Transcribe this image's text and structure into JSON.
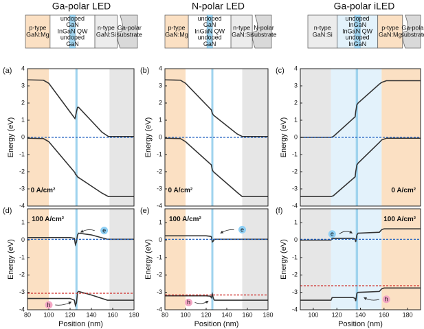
{
  "structures": [
    {
      "title": "Ga-polar LED",
      "layers": [
        {
          "lines": [
            "p-type",
            "GaN:Mg"
          ],
          "color": "#fbe0c3"
        },
        {
          "lines": [
            "undoped",
            "GaN",
            "InGaN QW",
            "undoped",
            "GaN"
          ],
          "color": "#ffffff"
        },
        {
          "lines": [
            "n-type",
            "GaN:Si"
          ],
          "color": "#ececec"
        },
        {
          "lines": [
            "Ga-polar",
            "substrate"
          ],
          "color": "#d9d9d9"
        }
      ]
    },
    {
      "title": "N-polar LED",
      "layers": [
        {
          "lines": [
            "p-type",
            "GaN:Mg"
          ],
          "color": "#fbe0c3"
        },
        {
          "lines": [
            "undoped",
            "GaN",
            "InGaN QW",
            "undoped",
            "GaN"
          ],
          "color": "#ffffff"
        },
        {
          "lines": [
            "n-type",
            "GaN:Si"
          ],
          "color": "#ececec"
        },
        {
          "lines": [
            "N-polar",
            "substrate"
          ],
          "color": "#d9d9d9"
        }
      ]
    },
    {
      "title": "Ga-polar iLED",
      "layers": [
        {
          "lines": [
            "n-type",
            "GaN:Si"
          ],
          "color": "#ececec"
        },
        {
          "lines": [
            "undoped",
            "InGaN",
            "InGaN QW",
            "undoped",
            "InGaN"
          ],
          "color": "#e3f2fb"
        },
        {
          "lines": [
            "p-type",
            "GaN:Mg"
          ],
          "color": "#fbe0c3"
        },
        {
          "lines": [
            "Ga-polar",
            "substrate"
          ],
          "color": "#d9d9d9"
        }
      ]
    }
  ],
  "chart_data": [
    {
      "type": "line",
      "label": "(a)",
      "ylabel": "Energy (eV)",
      "annotations": [
        "0 A/cm²"
      ],
      "xlim": [
        80,
        180
      ],
      "ylim": [
        -4,
        4
      ],
      "yticks": [
        -4,
        -3,
        -2,
        -1,
        0,
        1,
        2,
        3,
        4
      ],
      "regions": [
        {
          "x": [
            80,
            100
          ],
          "color": "#fbe0c3"
        },
        {
          "x": [
            125,
            127
          ],
          "color": "#9fd3ee"
        },
        {
          "x": [
            157,
            180
          ],
          "color": "#e6e6e6"
        }
      ],
      "series": [
        {
          "color": "#333333",
          "x": [
            80,
            95,
            100,
            124.5,
            125,
            126,
            127,
            128,
            150,
            156,
            180
          ],
          "values": [
            3.35,
            3.33,
            3.15,
            1.1,
            1.2,
            1.5,
            1.75,
            1.75,
            0.3,
            0.05,
            0.05
          ]
        },
        {
          "color": "#333333",
          "x": [
            80,
            95,
            100,
            124.5,
            125,
            126,
            127,
            150,
            156,
            180
          ],
          "values": [
            -0.05,
            -0.07,
            -0.25,
            -2.05,
            -2.15,
            -2.2,
            -2.3,
            -3.25,
            -3.45,
            -3.45
          ]
        },
        {
          "color": "#1f5fbf",
          "dashed": true,
          "x": [
            80,
            180
          ],
          "values": [
            0,
            0
          ]
        }
      ]
    },
    {
      "type": "line",
      "label": "(b)",
      "ylabel": "Energy (eV)",
      "annotations": [
        "0 A/cm²"
      ],
      "xlim": [
        80,
        180
      ],
      "ylim": [
        -4,
        4
      ],
      "yticks": [
        -4,
        -3,
        -2,
        -1,
        0,
        1,
        2,
        3,
        4
      ],
      "regions": [
        {
          "x": [
            80,
            100
          ],
          "color": "#fbe0c3"
        },
        {
          "x": [
            125,
            127
          ],
          "color": "#9fd3ee"
        },
        {
          "x": [
            155,
            180
          ],
          "color": "#e6e6e6"
        }
      ],
      "series": [
        {
          "color": "#333333",
          "x": [
            80,
            95,
            100,
            125,
            126,
            127,
            128,
            150,
            155,
            180
          ],
          "values": [
            3.35,
            3.33,
            3.15,
            1.6,
            1.4,
            1.3,
            1.25,
            0.2,
            0.05,
            0.05
          ]
        },
        {
          "color": "#333333",
          "x": [
            80,
            95,
            100,
            125,
            126,
            127,
            150,
            155,
            180
          ],
          "values": [
            -0.05,
            -0.07,
            -0.25,
            -1.6,
            -1.9,
            -2.0,
            -3.2,
            -3.45,
            -3.45
          ]
        },
        {
          "color": "#1f5fbf",
          "dashed": true,
          "x": [
            80,
            180
          ],
          "values": [
            0,
            0
          ]
        }
      ]
    },
    {
      "type": "line",
      "label": "(c)",
      "ylabel": "Energy (eV)",
      "annotations": [
        "0 A/cm²"
      ],
      "xlim": [
        89,
        191
      ],
      "ylim": [
        -4,
        4
      ],
      "yticks": [
        -4,
        -3,
        -2,
        -1,
        0,
        1,
        2,
        3,
        4
      ],
      "regions": [
        {
          "x": [
            89,
            115
          ],
          "color": "#e6e6e6"
        },
        {
          "x": [
            115,
            158
          ],
          "color": "#e3f2fb"
        },
        {
          "x": [
            136,
            138
          ],
          "color": "#9fd3ee"
        },
        {
          "x": [
            158,
            191
          ],
          "color": "#fbe0c3"
        }
      ],
      "series": [
        {
          "color": "#333333",
          "x": [
            89,
            115,
            117,
            135.5,
            136,
            137,
            138,
            156,
            158,
            162,
            191
          ],
          "values": [
            0,
            0,
            0.05,
            1.2,
            1.5,
            1.9,
            2.0,
            3.1,
            3.2,
            3.3,
            3.3
          ]
        },
        {
          "color": "#333333",
          "x": [
            89,
            115,
            117,
            135.5,
            136,
            137,
            138,
            156,
            158,
            162,
            191
          ],
          "values": [
            -3.45,
            -3.45,
            -3.4,
            -2.3,
            -2.0,
            -1.6,
            -1.5,
            -0.3,
            -0.15,
            -0.05,
            -0.05
          ]
        },
        {
          "color": "#1f5fbf",
          "dashed": true,
          "x": [
            89,
            191
          ],
          "values": [
            0,
            0
          ]
        }
      ]
    },
    {
      "type": "line",
      "label": "(d)",
      "ylabel": "Energy (eV)",
      "xlabel": "Position (nm)",
      "annotations": [
        "100 A/cm²",
        "e",
        "h"
      ],
      "xlim": [
        80,
        180
      ],
      "xticks": [
        80,
        100,
        120,
        140,
        160,
        180
      ],
      "ylim": [
        -4,
        1.8
      ],
      "yticks": [
        -4,
        -3,
        -2,
        -1,
        0,
        1
      ],
      "regions": [
        {
          "x": [
            80,
            100
          ],
          "color": "#fbe0c3"
        },
        {
          "x": [
            125,
            127
          ],
          "color": "#9fd3ee"
        },
        {
          "x": [
            157,
            180
          ],
          "color": "#e6e6e6"
        }
      ],
      "series": [
        {
          "color": "#333333",
          "x": [
            80,
            120,
            124,
            125,
            126,
            127,
            128,
            140,
            155,
            180
          ],
          "values": [
            0.15,
            0.15,
            0.1,
            -0.25,
            -0.1,
            0.3,
            0.4,
            0.3,
            0.05,
            0.05
          ]
        },
        {
          "color": "#333333",
          "x": [
            80,
            120,
            124,
            125,
            126,
            127,
            128,
            140,
            155,
            180
          ],
          "values": [
            -3.35,
            -3.35,
            -3.45,
            -3.75,
            -3.6,
            -3.0,
            -2.95,
            -3.15,
            -3.45,
            -3.45
          ]
        },
        {
          "color": "#1f5fbf",
          "dashed": true,
          "x": [
            80,
            180
          ],
          "values": [
            0.05,
            0.05
          ]
        },
        {
          "color": "#d0312d",
          "dashed": true,
          "x": [
            80,
            180
          ],
          "values": [
            -3.05,
            -3.05
          ]
        }
      ]
    },
    {
      "type": "line",
      "label": "(e)",
      "ylabel": "Energy (eV)",
      "xlabel": "Position (nm)",
      "annotations": [
        "100 A/cm²",
        "e",
        "h"
      ],
      "xlim": [
        80,
        180
      ],
      "xticks": [
        80,
        100,
        120,
        140,
        160,
        180
      ],
      "ylim": [
        -4,
        1.8
      ],
      "yticks": [
        -4,
        -3,
        -2,
        -1,
        0,
        1
      ],
      "regions": [
        {
          "x": [
            80,
            100
          ],
          "color": "#fbe0c3"
        },
        {
          "x": [
            125,
            127
          ],
          "color": "#9fd3ee"
        },
        {
          "x": [
            155,
            180
          ],
          "color": "#e6e6e6"
        }
      ],
      "series": [
        {
          "color": "#333333",
          "x": [
            80,
            120,
            124,
            125,
            126,
            127,
            128,
            140,
            155,
            180
          ],
          "values": [
            0.25,
            0.25,
            0.22,
            0.2,
            -0.1,
            -0.05,
            0.05,
            0.05,
            0.05,
            0.05
          ]
        },
        {
          "color": "#333333",
          "x": [
            80,
            120,
            124,
            125,
            126,
            127,
            128,
            140,
            155,
            180
          ],
          "values": [
            -3.2,
            -3.2,
            -3.22,
            -3.3,
            -3.1,
            -3.35,
            -3.45,
            -3.45,
            -3.45,
            -3.45
          ]
        },
        {
          "color": "#1f5fbf",
          "dashed": true,
          "x": [
            80,
            180
          ],
          "values": [
            0.05,
            0.05
          ]
        },
        {
          "color": "#d0312d",
          "dashed": true,
          "x": [
            80,
            180
          ],
          "values": [
            -3.15,
            -3.15
          ]
        }
      ]
    },
    {
      "type": "line",
      "label": "(f)",
      "ylabel": "Energy (eV)",
      "xlabel": "Position (nm)",
      "annotations": [
        "100 A/cm²",
        "e",
        "h"
      ],
      "xlim": [
        89,
        191
      ],
      "xticks": [
        100,
        120,
        140,
        160,
        180
      ],
      "ylim": [
        -4,
        1.8
      ],
      "yticks": [
        -4,
        -3,
        -2,
        -1,
        0,
        1
      ],
      "regions": [
        {
          "x": [
            89,
            115
          ],
          "color": "#e6e6e6"
        },
        {
          "x": [
            115,
            158
          ],
          "color": "#e3f2fb"
        },
        {
          "x": [
            136,
            138
          ],
          "color": "#9fd3ee"
        },
        {
          "x": [
            158,
            191
          ],
          "color": "#fbe0c3"
        }
      ],
      "series": [
        {
          "color": "#333333",
          "x": [
            89,
            115,
            116,
            134,
            135.5,
            136,
            137,
            138,
            156,
            158,
            160,
            191
          ],
          "values": [
            0,
            0,
            0.1,
            0.1,
            0.05,
            -0.1,
            0.3,
            0.4,
            0.45,
            0.6,
            0.65,
            0.65
          ]
        },
        {
          "color": "#333333",
          "x": [
            89,
            115,
            116,
            134,
            135.5,
            136,
            137,
            138,
            156,
            158,
            160,
            191
          ],
          "values": [
            -3.45,
            -3.45,
            -3.3,
            -3.3,
            -3.35,
            -3.5,
            -3.05,
            -3.0,
            -2.95,
            -2.8,
            -2.75,
            -2.75
          ]
        },
        {
          "color": "#1f5fbf",
          "dashed": true,
          "x": [
            89,
            191
          ],
          "values": [
            0.05,
            0.05
          ]
        },
        {
          "color": "#d0312d",
          "dashed": true,
          "x": [
            89,
            191
          ],
          "values": [
            -2.62,
            -2.62
          ]
        }
      ]
    }
  ]
}
